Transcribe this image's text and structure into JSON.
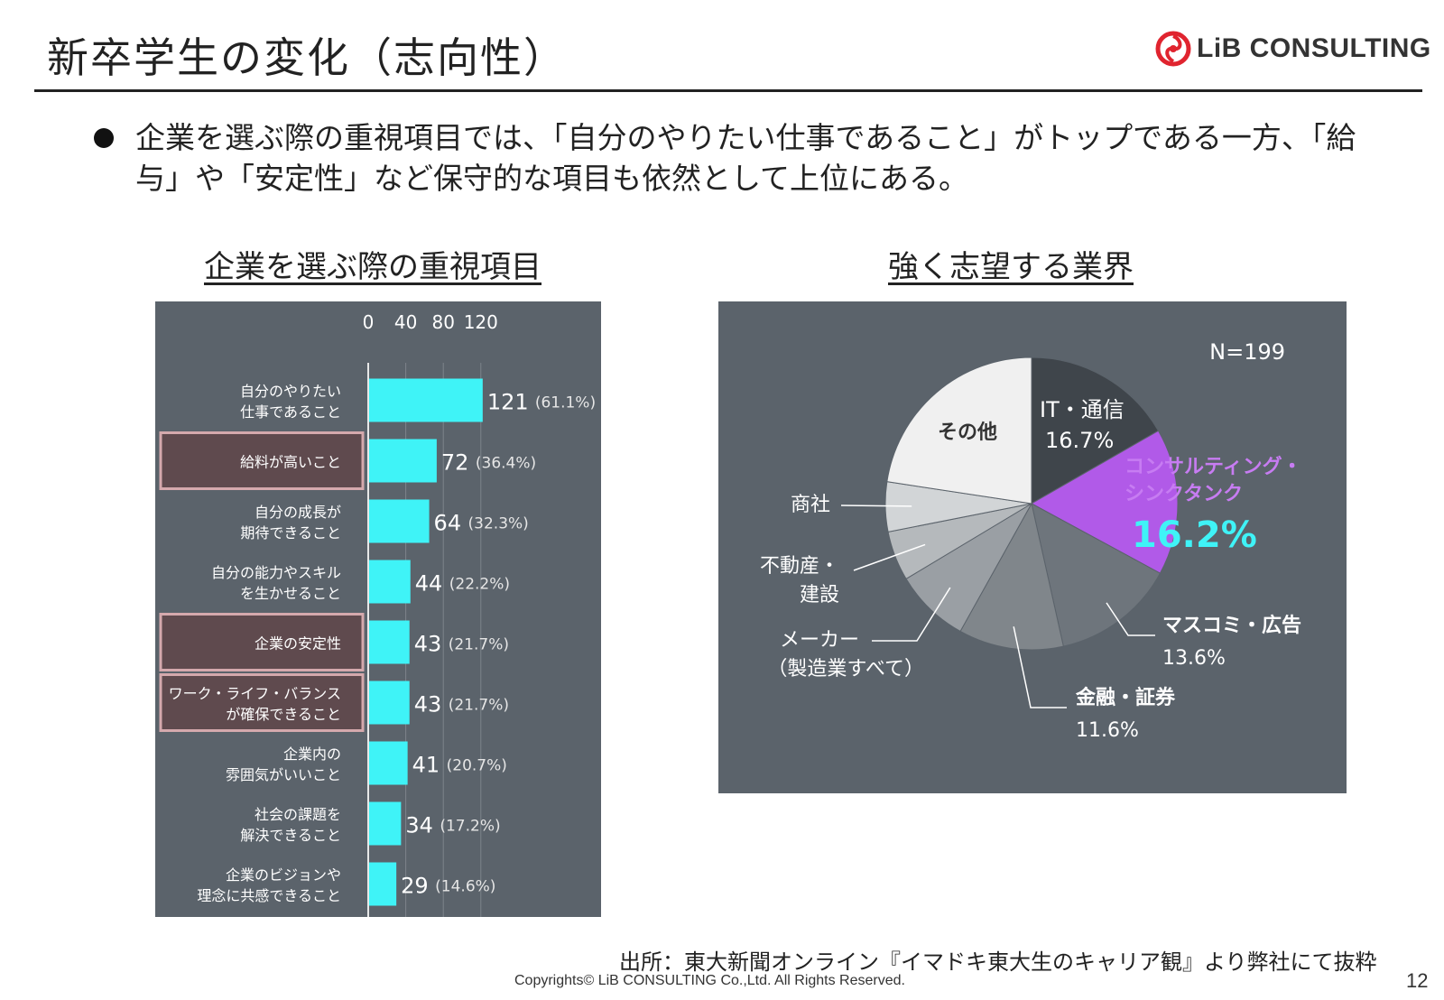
{
  "header": {
    "title": "新卒学生の変化（志向性）",
    "logo_text": "LiB CONSULTING",
    "brand_color": "#e0242f"
  },
  "bullet": {
    "text": "企業を選ぶ際の重視項目では、「自分のやりたい仕事であること」がトップである一方、「給与」や「安定性」など保守的な項目も依然として上位にある。"
  },
  "colors": {
    "panel": "#5b636b",
    "bar": "#3ff3f7",
    "highlight_border": "#d5a9ad",
    "highlight_fill": "#5f4a4e",
    "consulting": "#b15ae8"
  },
  "chart_data": [
    {
      "type": "bar",
      "title": "企業を選ぶ際の重視項目",
      "orientation": "horizontal",
      "xticks": [
        0,
        40,
        80,
        120
      ],
      "xlim": [
        0,
        121
      ],
      "categories": [
        [
          "自分のやりたい",
          "仕事であること"
        ],
        [
          "給料が高いこと"
        ],
        [
          "自分の成長が",
          "期待できること"
        ],
        [
          "自分の能力やスキル",
          "を生かせること"
        ],
        [
          "企業の安定性"
        ],
        [
          "ワーク・ライフ・バランス",
          "が確保できること"
        ],
        [
          "企業内の",
          "雰囲気がいいこと"
        ],
        [
          "社会の課題を",
          "解決できること"
        ],
        [
          "企業のビジョンや",
          "理念に共感できること"
        ]
      ],
      "values": [
        121,
        72,
        64,
        44,
        43,
        43,
        41,
        34,
        29
      ],
      "percent_labels": [
        "(61.1%)",
        "(36.4%)",
        "(32.3%)",
        "(22.2%)",
        "(21.7%)",
        "(21.7%)",
        "(20.7%)",
        "(17.2%)",
        "(14.6%)"
      ],
      "highlighted": [
        false,
        true,
        false,
        false,
        true,
        true,
        false,
        false,
        false
      ]
    },
    {
      "type": "pie",
      "title": "強く志望する業界",
      "note": "N=199",
      "slices": [
        {
          "label": "IT・通信",
          "value": 16.7,
          "display": "16.7%",
          "color": "#3f454b"
        },
        {
          "label": "コンサルティング・シンクタンク",
          "value": 16.2,
          "display": "16.2%",
          "color": "#b15ae8"
        },
        {
          "label": "マスコミ・広告",
          "value": 13.6,
          "display": "13.6%",
          "color": "#6e757c"
        },
        {
          "label": "金融・証券",
          "value": 11.6,
          "display": "11.6%",
          "color": "#80868b"
        },
        {
          "label": "メーカー（製造業すべて）",
          "value": 8.3,
          "display": "",
          "color": "#9a9fa4"
        },
        {
          "label": "不動産・建設",
          "value": 5.5,
          "display": "",
          "color": "#b5b9bc"
        },
        {
          "label": "商社",
          "value": 5.5,
          "display": "",
          "color": "#d2d5d7"
        },
        {
          "label": "その他",
          "value": 22.6,
          "display": "",
          "color": "#f0f0f0"
        }
      ]
    }
  ],
  "footer": {
    "source": "出所：東大新聞オンライン『イマドキ東大生のキャリア観』より弊社にて抜粋",
    "copyright": "Copyrights© LiB CONSULTING Co.,Ltd.  All Rights Reserved.",
    "page_number": "12"
  }
}
